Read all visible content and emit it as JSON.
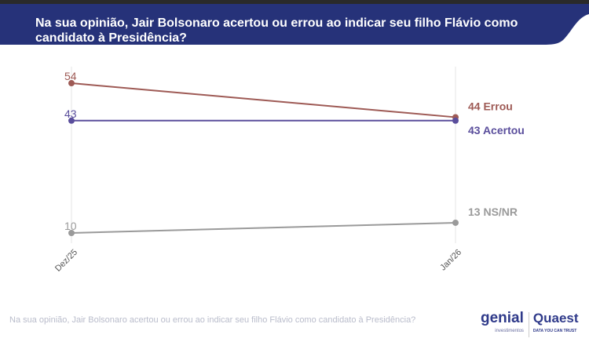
{
  "title": "Na sua opinião, Jair Bolsonaro acertou ou errou ao indicar seu filho Flávio como candidato à Presidência?",
  "footnote": "Na sua opinião, Jair Bolsonaro acertou ou errou ao indicar seu filho Flávio como candidato à Presidência?",
  "logos": {
    "genial": "genial",
    "genial_sub": "investimentos",
    "quaest": "Quaest",
    "quaest_sub": "DATA YOU CAN TRUST"
  },
  "colors": {
    "banner": "#263279",
    "errou": "#9e5a55",
    "acertou": "#5a4e9c",
    "nsnr": "#9a9a9a"
  },
  "chart_data": {
    "type": "line",
    "categories": [
      "Dez/25",
      "Jan/26"
    ],
    "series": [
      {
        "name": "Errou",
        "values": [
          54,
          44
        ],
        "color": "#9e5a55"
      },
      {
        "name": "Acertou",
        "values": [
          43,
          43
        ],
        "color": "#5a4e9c"
      },
      {
        "name": "NS/NR",
        "values": [
          10,
          13
        ],
        "color": "#9a9a9a"
      }
    ],
    "grid": false,
    "legend": "end-labels"
  }
}
